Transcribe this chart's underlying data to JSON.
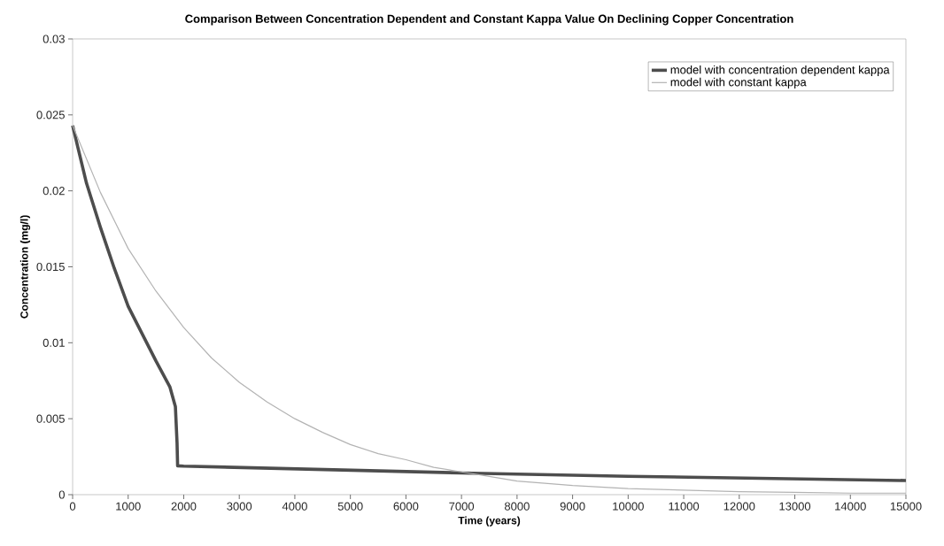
{
  "chart_data": {
    "type": "line",
    "title": "Comparison Between Concentration Dependent and Constant Kappa Value On Declining Copper Concentration",
    "xlabel": "Time (years)",
    "ylabel": "Concentration (mg/l)",
    "xlim": [
      0,
      15000
    ],
    "xticks": [
      0,
      1000,
      2000,
      3000,
      4000,
      5000,
      6000,
      7000,
      8000,
      9000,
      10000,
      11000,
      12000,
      13000,
      14000,
      15000
    ],
    "ylim": [
      0,
      0.03
    ],
    "yticks": [
      0,
      0.005,
      0.01,
      0.015,
      0.02,
      0.025,
      0.03
    ],
    "grid": false,
    "legend": "top right",
    "marker": "none",
    "line_style": "solid",
    "series": [
      {
        "name": "model with concentration dependent kappa",
        "color": "#4d4d4d",
        "x": [
          0,
          250,
          500,
          750,
          1000,
          1250,
          1500,
          1750,
          1850,
          1880,
          1890,
          2000,
          4000,
          7000,
          10000,
          15000
        ],
        "values": [
          0.0243,
          0.0205,
          0.0176,
          0.0149,
          0.0124,
          0.0106,
          0.0088,
          0.0071,
          0.0058,
          0.0034,
          0.0019,
          0.00188,
          0.0017,
          0.00143,
          0.00121,
          0.00093
        ]
      },
      {
        "name": "model with constant kappa",
        "color": "#b3b3b3",
        "x": [
          0,
          500,
          1000,
          1500,
          2000,
          2500,
          3000,
          3500,
          4000,
          4500,
          5000,
          5500,
          6000,
          6500,
          7000,
          7500,
          8000,
          9000,
          10000,
          11000,
          12000,
          13000,
          14000,
          15000
        ],
        "values": [
          0.0243,
          0.0199,
          0.0162,
          0.0134,
          0.011,
          0.009,
          0.0074,
          0.0061,
          0.005,
          0.0041,
          0.0033,
          0.0027,
          0.0023,
          0.0018,
          0.0015,
          0.0012,
          0.0009,
          0.0006,
          0.0004,
          0.0003,
          0.0002,
          0.00015,
          0.0001,
          0.0001
        ]
      }
    ]
  }
}
